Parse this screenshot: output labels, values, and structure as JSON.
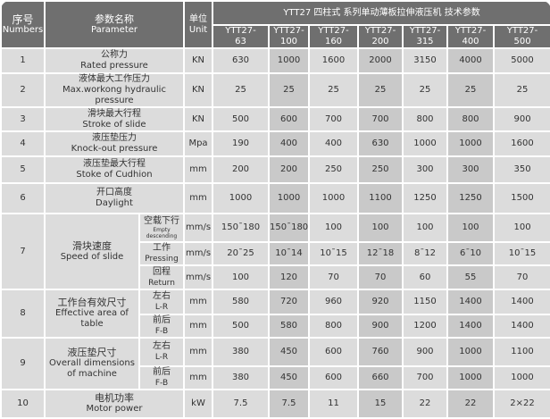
{
  "header": {
    "no_cn": "序号",
    "no_en": "Numbers",
    "param_cn": "参数名称",
    "param_en": "Parameter",
    "unit_cn": "单位",
    "unit_en": "Unit",
    "title": "YTT27 四柱式  系列单动薄板拉伸液压机  技术参数"
  },
  "models": [
    [
      "YTT27-",
      "63"
    ],
    [
      "YTT27-",
      "100"
    ],
    [
      "YTT27-",
      "160"
    ],
    [
      "YTT27-",
      "200"
    ],
    [
      "YTT27-",
      "315"
    ],
    [
      "YTT27-",
      "400"
    ],
    [
      "YTT27-",
      "500"
    ]
  ],
  "rows": [
    {
      "no": "1",
      "cn": "公称力",
      "en": "Rated pressure",
      "unit": "KN",
      "values": [
        "630",
        "1000",
        "1600",
        "2000",
        "3150",
        "4000",
        "5000"
      ]
    },
    {
      "no": "2",
      "cn": "液体最大工作压力",
      "en": "Max.workong hydraulic pressure",
      "unit": "KN",
      "values": [
        "25",
        "25",
        "25",
        "25",
        "25",
        "25",
        "25"
      ]
    },
    {
      "no": "3",
      "cn": "滑块最大行程",
      "en": "Stroke of slide",
      "unit": "KN",
      "values": [
        "500",
        "600",
        "700",
        "700",
        "800",
        "800",
        "900"
      ]
    },
    {
      "no": "4",
      "cn": "液压垫压力",
      "en": "Knock-out pressure",
      "unit": "Mpa",
      "values": [
        "190",
        "400",
        "400",
        "630",
        "1000",
        "1000",
        "1600"
      ]
    },
    {
      "no": "5",
      "cn": "液压垫最大行程",
      "en": "Stoke of Cudhion",
      "unit": "mm",
      "values": [
        "200",
        "200",
        "250",
        "250",
        "300",
        "300",
        "350"
      ]
    },
    {
      "no": "6",
      "cn": "开口高度",
      "en": "Daylight",
      "unit": "mm",
      "values": [
        "1000",
        "1000",
        "1000",
        "1100",
        "1250",
        "1250",
        "1500"
      ]
    }
  ],
  "speed": {
    "no": "7",
    "cn": "滑块速度",
    "en": "Speed of slide",
    "subs": [
      {
        "cn": "空载下行",
        "en": "Empty descending",
        "unit": "mm/s",
        "values": [
          "150¯180",
          "150¯180",
          "100",
          "100",
          "100",
          "100",
          "100"
        ]
      },
      {
        "cn": "工作",
        "en": "Pressing",
        "unit": "mm/s",
        "values": [
          "20¯25",
          "10¯14",
          "10¯15",
          "12¯18",
          "8¯12",
          "6¯10",
          "10¯15"
        ]
      },
      {
        "cn": "回程",
        "en": "Return",
        "unit": "mm/s",
        "values": [
          "100",
          "120",
          "70",
          "70",
          "60",
          "55",
          "70"
        ]
      }
    ]
  },
  "table_area": {
    "no": "8",
    "cn": "工作台有效尺寸",
    "en": "Effective area of table",
    "subs": [
      {
        "cn": "左右",
        "en": "L-R",
        "unit": "mm",
        "values": [
          "580",
          "720",
          "960",
          "920",
          "1150",
          "1400",
          "1400"
        ]
      },
      {
        "cn": "前后",
        "en": "F-B",
        "unit": "mm",
        "values": [
          "500",
          "580",
          "800",
          "900",
          "1200",
          "1400",
          "1400"
        ]
      }
    ]
  },
  "cushion": {
    "no": "9",
    "cn": "液压垫尺寸",
    "en": "Overall dimensions of machine",
    "subs": [
      {
        "cn": "左右",
        "en": "L-R",
        "unit": "mm",
        "values": [
          "380",
          "450",
          "600",
          "760",
          "900",
          "1000",
          "1100"
        ]
      },
      {
        "cn": "前后",
        "en": "F-B",
        "unit": "mm",
        "values": [
          "380",
          "450",
          "600",
          "660",
          "700",
          "1000",
          "1000"
        ]
      }
    ]
  },
  "motor": {
    "no": "10",
    "cn": "电机功率",
    "en": "Motor power",
    "unit": "kW",
    "values": [
      "7.5",
      "7.5",
      "11",
      "15",
      "22",
      "22",
      "2×22"
    ]
  }
}
